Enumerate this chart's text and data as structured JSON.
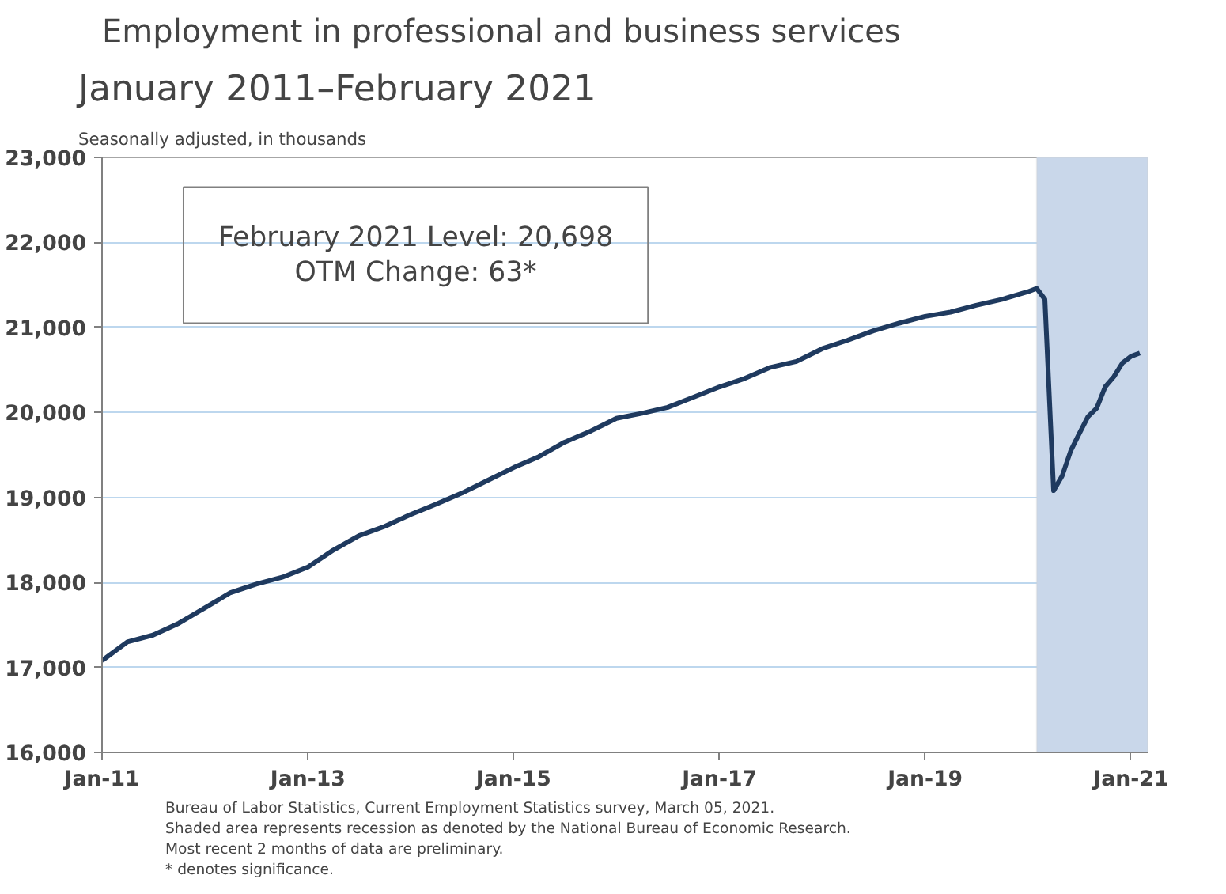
{
  "chart_data": {
    "type": "line",
    "title": "Employment in professional and business services",
    "subtitle": "January 2011–February 2021",
    "ylabel": "Seasonally adjusted, in thousands",
    "x": [
      "2011-01",
      "2011-04",
      "2011-07",
      "2011-10",
      "2012-01",
      "2012-04",
      "2012-07",
      "2012-10",
      "2013-01",
      "2013-04",
      "2013-07",
      "2013-10",
      "2014-01",
      "2014-04",
      "2014-07",
      "2014-10",
      "2015-01",
      "2015-04",
      "2015-07",
      "2015-10",
      "2016-01",
      "2016-04",
      "2016-07",
      "2016-10",
      "2017-01",
      "2017-04",
      "2017-07",
      "2017-10",
      "2018-01",
      "2018-04",
      "2018-07",
      "2018-10",
      "2019-01",
      "2019-04",
      "2019-07",
      "2019-10",
      "2020-01",
      "2020-02",
      "2020-03",
      "2020-04",
      "2020-05",
      "2020-06",
      "2020-07",
      "2020-08",
      "2020-09",
      "2020-10",
      "2020-11",
      "2020-12",
      "2021-01",
      "2021-02"
    ],
    "series": [
      {
        "color": "#1f3a5f",
        "values": [
          17080,
          17300,
          17380,
          17520,
          17700,
          17880,
          17980,
          18060,
          18180,
          18380,
          18550,
          18660,
          18800,
          18920,
          19050,
          19200,
          19350,
          19480,
          19650,
          19780,
          19930,
          19990,
          20060,
          20180,
          20300,
          20400,
          20530,
          20600,
          20750,
          20850,
          20960,
          21050,
          21130,
          21180,
          21260,
          21330,
          21420,
          21460,
          21330,
          19080,
          19250,
          19550,
          19750,
          19950,
          20050,
          20300,
          20420,
          20580,
          20660,
          20698
        ]
      }
    ],
    "xlim": [
      "2011-01",
      "2021-03"
    ],
    "xticks": [
      {
        "value": "2011-01",
        "label": "Jan-11"
      },
      {
        "value": "2013-01",
        "label": "Jan-13"
      },
      {
        "value": "2015-01",
        "label": "Jan-15"
      },
      {
        "value": "2017-01",
        "label": "Jan-17"
      },
      {
        "value": "2019-01",
        "label": "Jan-19"
      },
      {
        "value": "2021-01",
        "label": "Jan-21"
      }
    ],
    "ylim": [
      16000,
      23000
    ],
    "yticks": [
      {
        "value": 16000,
        "label": "16,000"
      },
      {
        "value": 17000,
        "label": "17,000"
      },
      {
        "value": 18000,
        "label": "18,000"
      },
      {
        "value": 19000,
        "label": "19,000"
      },
      {
        "value": 20000,
        "label": "20,000"
      },
      {
        "value": 21000,
        "label": "21,000"
      },
      {
        "value": 22000,
        "label": "22,000"
      },
      {
        "value": 23000,
        "label": "23,000"
      }
    ],
    "grid": "y",
    "line_style": "solid",
    "bands": [
      {
        "axis": "x",
        "from": "2020-02",
        "to": "2021-03",
        "color": "#c9d7ea"
      }
    ],
    "annotations": [
      "February 2021 Level: 20,698\nOTM Change: 63*",
      "Bureau of Labor Statistics, Current Employment Statistics survey, March 05, 2021.",
      "Shaded area represents recession as denoted by the National Bureau of Economic Research.",
      "Most recent 2 months of data are preliminary.",
      "* denotes significance."
    ]
  }
}
